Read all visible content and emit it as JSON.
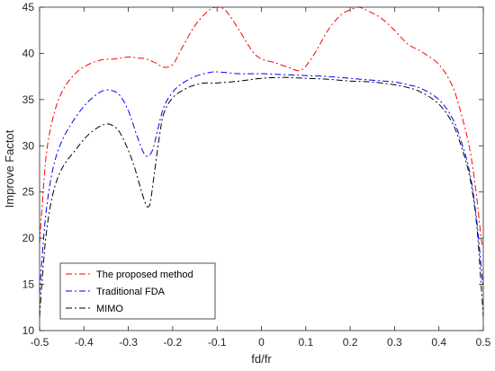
{
  "chart_data": {
    "type": "line",
    "title": "",
    "xlabel": "fd/fr",
    "ylabel": "Improve Factot",
    "xlim": [
      -0.5,
      0.5
    ],
    "ylim": [
      10,
      45
    ],
    "xticks": [
      -0.5,
      -0.4,
      -0.3,
      -0.2,
      -0.1,
      0,
      0.1,
      0.2,
      0.3,
      0.4,
      0.5
    ],
    "xtick_labels": [
      "-0.5",
      "-0.4",
      "-0.3",
      "-0.2",
      "-0.1",
      "0",
      "0.1",
      "0.2",
      "0.3",
      "0.4",
      "0.5"
    ],
    "yticks": [
      10,
      15,
      20,
      25,
      30,
      35,
      40,
      45
    ],
    "ytick_labels": [
      "10",
      "15",
      "20",
      "25",
      "30",
      "35",
      "40",
      "45"
    ],
    "grid": false,
    "legend_position": "bottom-left",
    "series": [
      {
        "name": "The proposed method",
        "color": "#ff0000",
        "dash": "dashdot",
        "x": [
          -0.5,
          -0.495,
          -0.485,
          -0.47,
          -0.45,
          -0.42,
          -0.39,
          -0.36,
          -0.33,
          -0.3,
          -0.28,
          -0.26,
          -0.24,
          -0.22,
          -0.2,
          -0.18,
          -0.15,
          -0.12,
          -0.1,
          -0.08,
          -0.05,
          -0.02,
          0,
          0.03,
          0.06,
          0.09,
          0.12,
          0.15,
          0.18,
          0.21,
          0.22,
          0.24,
          0.27,
          0.3,
          0.33,
          0.36,
          0.4,
          0.43,
          0.45,
          0.47,
          0.485,
          0.495,
          0.5
        ],
        "y": [
          19.5,
          23.0,
          29.0,
          33.0,
          35.8,
          37.8,
          38.8,
          39.3,
          39.4,
          39.6,
          39.5,
          39.4,
          39.0,
          38.5,
          38.8,
          40.5,
          43.0,
          44.6,
          45.0,
          44.6,
          42.5,
          40.2,
          39.4,
          39.0,
          38.5,
          38.2,
          40.0,
          42.5,
          44.2,
          44.9,
          45.0,
          44.6,
          43.8,
          42.5,
          41.0,
          40.2,
          38.8,
          36.5,
          33.5,
          29.5,
          24.5,
          20.0,
          19.0
        ]
      },
      {
        "name": "Traditional FDA",
        "color": "#0000ff",
        "dash": "dashdot",
        "x": [
          -0.5,
          -0.495,
          -0.485,
          -0.47,
          -0.45,
          -0.42,
          -0.39,
          -0.36,
          -0.34,
          -0.32,
          -0.3,
          -0.28,
          -0.265,
          -0.255,
          -0.245,
          -0.235,
          -0.22,
          -0.2,
          -0.18,
          -0.15,
          -0.12,
          -0.1,
          -0.05,
          0,
          0.05,
          0.1,
          0.15,
          0.2,
          0.25,
          0.3,
          0.33,
          0.36,
          0.4,
          0.43,
          0.45,
          0.47,
          0.485,
          0.495,
          0.5
        ],
        "y": [
          14.0,
          17.5,
          23.0,
          27.5,
          30.5,
          33.0,
          34.8,
          35.9,
          36.0,
          35.5,
          33.8,
          31.0,
          29.2,
          28.9,
          29.6,
          31.5,
          34.2,
          35.8,
          36.7,
          37.5,
          37.9,
          38.0,
          37.8,
          37.8,
          37.7,
          37.6,
          37.5,
          37.3,
          37.1,
          36.9,
          36.6,
          36.2,
          35.0,
          33.0,
          30.5,
          27.0,
          22.0,
          17.0,
          14.5
        ]
      },
      {
        "name": "MIMO",
        "color": "#000000",
        "dash": "dashdot",
        "x": [
          -0.5,
          -0.495,
          -0.485,
          -0.47,
          -0.45,
          -0.42,
          -0.39,
          -0.36,
          -0.34,
          -0.32,
          -0.3,
          -0.285,
          -0.27,
          -0.26,
          -0.255,
          -0.25,
          -0.24,
          -0.23,
          -0.22,
          -0.2,
          -0.17,
          -0.14,
          -0.12,
          -0.1,
          -0.05,
          0,
          0.05,
          0.1,
          0.15,
          0.2,
          0.25,
          0.3,
          0.33,
          0.36,
          0.4,
          0.43,
          0.45,
          0.47,
          0.485,
          0.495,
          0.5
        ],
        "y": [
          11.5,
          15.0,
          20.5,
          24.8,
          27.5,
          29.5,
          31.2,
          32.2,
          32.3,
          31.5,
          29.5,
          27.5,
          25.0,
          23.6,
          23.4,
          24.0,
          27.5,
          31.0,
          33.5,
          35.2,
          36.2,
          36.7,
          36.8,
          36.8,
          37.0,
          37.3,
          37.4,
          37.3,
          37.2,
          37.0,
          36.9,
          36.6,
          36.3,
          35.8,
          34.5,
          32.5,
          30.0,
          26.5,
          21.5,
          15.0,
          11.5
        ]
      }
    ]
  }
}
